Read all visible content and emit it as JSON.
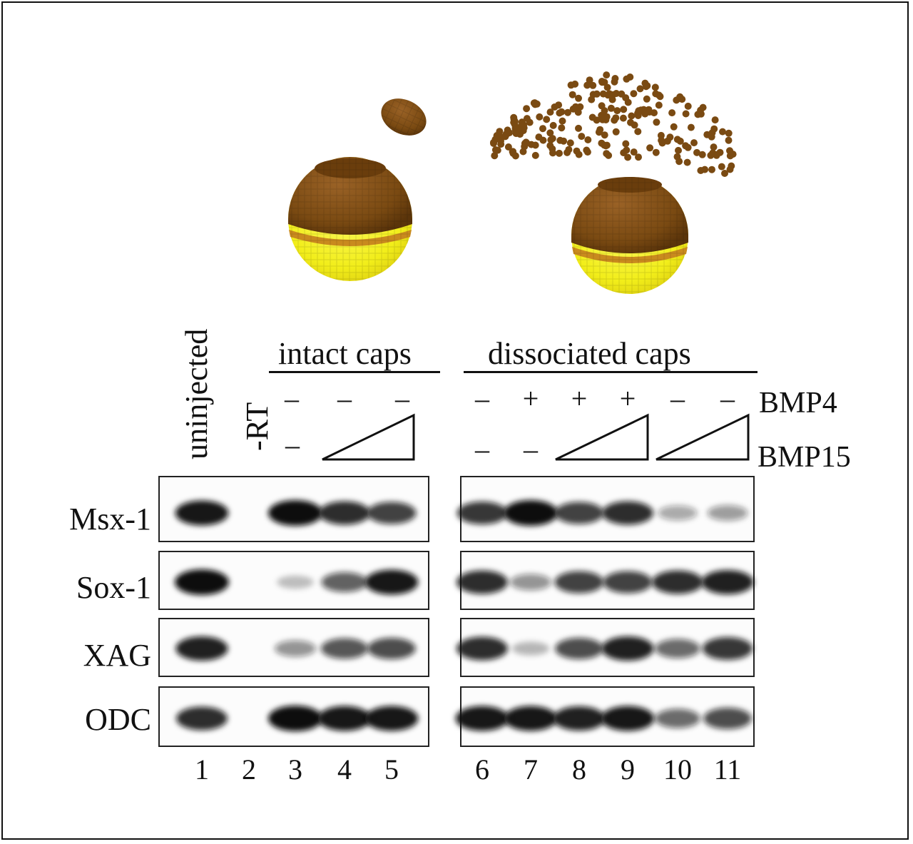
{
  "figure": {
    "conditions": {
      "uninjected": "uninjected",
      "minus_rt": "-RT",
      "intact_caps": "intact caps",
      "dissociated_caps": "dissociated caps"
    },
    "reagents": {
      "bmp4": "BMP4",
      "bmp15": "BMP15"
    },
    "bmp4_signs_intact": [
      "–",
      "–",
      "–"
    ],
    "bmp4_signs_dissociated": [
      "–",
      "+",
      "+",
      "+",
      "–",
      "–"
    ],
    "bmp15_signs": [
      "–",
      "–",
      "–"
    ],
    "genes": [
      "Msx-1",
      "Sox-1",
      "XAG",
      "ODC"
    ],
    "lanes": [
      "1",
      "2",
      "3",
      "4",
      "5",
      "6",
      "7",
      "8",
      "9",
      "10",
      "11"
    ],
    "colors": {
      "animal_cap": "#7a4a12",
      "vegetal": "#f2ee1a",
      "band": "#101010",
      "frame": "#111111"
    },
    "band_intensity": {
      "Msx-1": [
        0.95,
        0.0,
        1.0,
        0.85,
        0.75,
        0.8,
        1.0,
        0.75,
        0.85,
        0.25,
        0.3
      ],
      "Sox-1": [
        1.0,
        0.0,
        0.12,
        0.6,
        0.95,
        0.85,
        0.35,
        0.75,
        0.75,
        0.85,
        0.9
      ],
      "XAG": [
        0.9,
        0.0,
        0.35,
        0.65,
        0.7,
        0.85,
        0.15,
        0.7,
        0.9,
        0.55,
        0.8
      ],
      "ODC": [
        0.85,
        0.0,
        1.0,
        0.95,
        0.95,
        0.95,
        0.95,
        0.9,
        0.95,
        0.55,
        0.7
      ]
    }
  }
}
